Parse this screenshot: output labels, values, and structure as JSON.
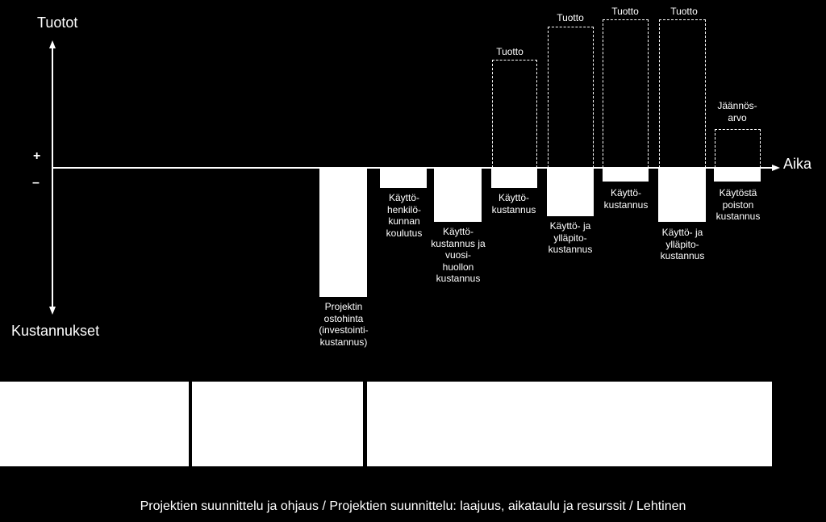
{
  "axes": {
    "y_top": "Tuotot",
    "y_bottom": "Kustannukset",
    "x": "Aika",
    "plus": "+",
    "minus": "–"
  },
  "costs": [
    {
      "label": "Projektin\nostohinta\n(investointi-\nkustannus)"
    },
    {
      "label": "Käyttö-\nhenkilö-\nkunnan\nkoulutus"
    },
    {
      "label": "Käyttö-\nkustannus ja\nvuosi-\nhuollon\nkustannus"
    },
    {
      "label": "Käyttö-\nkustannus"
    },
    {
      "label": "Käyttö- ja\nylläpito-\nkustannus"
    },
    {
      "label": "Käyttö-\nkustannus"
    },
    {
      "label": "Käyttö- ja\nylläpito-\nkustannus"
    },
    {
      "label": "Käytöstä\npoiston\nkustannus"
    }
  ],
  "revenues": [
    {
      "label": "Tuotto"
    },
    {
      "label": "Tuotto"
    },
    {
      "label": "Tuotto"
    },
    {
      "label": "Tuotto"
    },
    {
      "label": "Jäännös-\narvo"
    }
  ],
  "phases": [
    {
      "label": ""
    },
    {
      "label": ""
    },
    {
      "label": ""
    }
  ],
  "footer": "Projektien suunnittelu ja ohjaus / Projektien suunnittelu: laajuus, aikataulu ja resurssit / Lehtinen",
  "colors": {
    "background": "#000000",
    "foreground": "#ffffff"
  }
}
